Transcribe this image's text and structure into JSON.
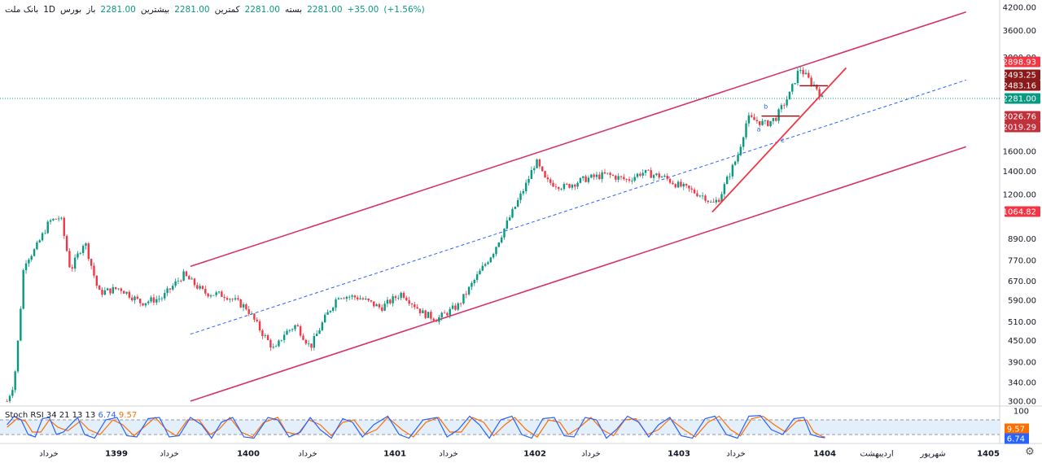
{
  "legend": {
    "symbol": "بانک ملت",
    "interval": "1D",
    "exchange": "بورس",
    "open_label": "باز",
    "open": "2281.00",
    "high_label": "بیشترین",
    "high": "2281.00",
    "low_label": "کمترین",
    "low": "2281.00",
    "close_label": "بسته",
    "close": "2281.00",
    "change": "+35.00",
    "change_pct": "(+1.56%)"
  },
  "stoch_legend": {
    "name": "Stoch RSI",
    "params": "34 21 13 13",
    "k": "6.74",
    "d": "9.57"
  },
  "colors": {
    "channel": "#d6336c",
    "midline": "#2962ff",
    "up": "#089981",
    "down": "#f23645",
    "stoch_k": "#2962ff",
    "stoch_d": "#ff6d00",
    "trendline": "#f23645",
    "stoch_band": "#e3f0fb"
  },
  "chart_data": {
    "type": "candlestick",
    "price_scale": "log",
    "y_ticks": [
      "4200.00",
      "3600.00",
      "3000.00",
      "1600.00",
      "1400.00",
      "1200.00",
      "890.00",
      "770.00",
      "670.00",
      "590.00",
      "510.00",
      "450.00",
      "390.00",
      "340.00",
      "300.00"
    ],
    "x_labels": [
      "خرداد",
      "1399",
      "خرداد",
      "1400",
      "خرداد",
      "1401",
      "خرداد",
      "1402",
      "خرداد",
      "1403",
      "خرداد",
      "1404",
      "اردیبهشت",
      "شهریور",
      "1405"
    ],
    "price_tags": [
      {
        "value": "2898.93",
        "color": "#f23645"
      },
      {
        "value": "2493.25",
        "color": "#8b1a1a"
      },
      {
        "value": "2483.16",
        "color": "#8b1a1a"
      },
      {
        "value": "2281.00",
        "color": "#089981"
      },
      {
        "value": "2026.76",
        "color": "#c0313b"
      },
      {
        "value": "2019.29",
        "color": "#c0313b"
      },
      {
        "value": "1064.82",
        "color": "#f23645"
      }
    ],
    "stoch_ticks": [
      "100",
      "9.57",
      "6.74"
    ],
    "wave_labels": [
      "a",
      "b",
      "c"
    ],
    "close_anchors": [
      [
        1398.0,
        300
      ],
      [
        1398.05,
        340
      ],
      [
        1398.08,
        460
      ],
      [
        1398.12,
        760
      ],
      [
        1398.2,
        830
      ],
      [
        1398.3,
        1000
      ],
      [
        1398.38,
        1030
      ],
      [
        1398.45,
        720
      ],
      [
        1398.55,
        880
      ],
      [
        1398.65,
        620
      ],
      [
        1398.8,
        640
      ],
      [
        1398.95,
        580
      ],
      [
        1399.1,
        600
      ],
      [
        1399.25,
        700
      ],
      [
        1399.4,
        620
      ],
      [
        1399.55,
        610
      ],
      [
        1399.7,
        560
      ],
      [
        1399.8,
        480
      ],
      [
        1399.9,
        420
      ],
      [
        1399.96,
        470
      ],
      [
        1400.05,
        500
      ],
      [
        1400.15,
        430
      ],
      [
        1400.25,
        520
      ],
      [
        1400.35,
        610
      ],
      [
        1400.5,
        600
      ],
      [
        1400.65,
        560
      ],
      [
        1400.8,
        620
      ],
      [
        1400.95,
        540
      ],
      [
        1401.05,
        520
      ],
      [
        1401.2,
        570
      ],
      [
        1401.32,
        680
      ],
      [
        1401.45,
        820
      ],
      [
        1401.55,
        1000
      ],
      [
        1401.68,
        1280
      ],
      [
        1401.75,
        1500
      ],
      [
        1401.82,
        1310
      ],
      [
        1401.95,
        1260
      ],
      [
        1402.1,
        1330
      ],
      [
        1402.25,
        1370
      ],
      [
        1402.4,
        1320
      ],
      [
        1402.5,
        1390
      ],
      [
        1402.65,
        1350
      ],
      [
        1402.75,
        1280
      ],
      [
        1402.85,
        1230
      ],
      [
        1402.95,
        1180
      ],
      [
        1403.0,
        1120
      ],
      [
        1403.05,
        1170
      ],
      [
        1403.1,
        1310
      ],
      [
        1403.18,
        1550
      ],
      [
        1403.25,
        2000
      ],
      [
        1403.32,
        1960
      ],
      [
        1403.38,
        1920
      ],
      [
        1403.45,
        2000
      ],
      [
        1403.55,
        2350
      ],
      [
        1403.62,
        2800
      ],
      [
        1403.68,
        2600
      ],
      [
        1403.74,
        2450
      ],
      [
        1403.78,
        2281
      ]
    ],
    "stoch_rsi": {
      "k": [
        [
          1398.0,
          60
        ],
        [
          1398.05,
          95
        ],
        [
          1398.1,
          80
        ],
        [
          1398.15,
          20
        ],
        [
          1398.2,
          10
        ],
        [
          1398.25,
          85
        ],
        [
          1398.3,
          90
        ],
        [
          1398.35,
          20
        ],
        [
          1398.4,
          30
        ],
        [
          1398.5,
          90
        ],
        [
          1398.55,
          20
        ],
        [
          1398.62,
          5
        ],
        [
          1398.7,
          80
        ],
        [
          1398.78,
          90
        ],
        [
          1398.85,
          15
        ],
        [
          1398.92,
          10
        ],
        [
          1399.0,
          85
        ],
        [
          1399.08,
          90
        ],
        [
          1399.15,
          10
        ],
        [
          1399.22,
          15
        ],
        [
          1399.3,
          90
        ],
        [
          1399.38,
          60
        ],
        [
          1399.45,
          5
        ],
        [
          1399.52,
          70
        ],
        [
          1399.6,
          90
        ],
        [
          1399.68,
          10
        ],
        [
          1399.75,
          5
        ],
        [
          1399.85,
          90
        ],
        [
          1399.92,
          80
        ],
        [
          1400.0,
          10
        ],
        [
          1400.08,
          30
        ],
        [
          1400.15,
          90
        ],
        [
          1400.22,
          40
        ],
        [
          1400.3,
          5
        ],
        [
          1400.38,
          85
        ],
        [
          1400.45,
          70
        ],
        [
          1400.52,
          10
        ],
        [
          1400.6,
          60
        ],
        [
          1400.7,
          95
        ],
        [
          1400.78,
          20
        ],
        [
          1400.85,
          5
        ],
        [
          1400.95,
          80
        ],
        [
          1401.05,
          90
        ],
        [
          1401.12,
          10
        ],
        [
          1401.2,
          40
        ],
        [
          1401.28,
          95
        ],
        [
          1401.35,
          60
        ],
        [
          1401.42,
          5
        ],
        [
          1401.5,
          80
        ],
        [
          1401.58,
          95
        ],
        [
          1401.65,
          20
        ],
        [
          1401.72,
          5
        ],
        [
          1401.8,
          85
        ],
        [
          1401.88,
          90
        ],
        [
          1401.95,
          15
        ],
        [
          1402.02,
          10
        ],
        [
          1402.1,
          90
        ],
        [
          1402.18,
          80
        ],
        [
          1402.25,
          5
        ],
        [
          1402.32,
          40
        ],
        [
          1402.4,
          95
        ],
        [
          1402.48,
          70
        ],
        [
          1402.55,
          10
        ],
        [
          1402.62,
          60
        ],
        [
          1402.7,
          90
        ],
        [
          1402.78,
          15
        ],
        [
          1402.86,
          5
        ],
        [
          1402.95,
          85
        ],
        [
          1403.02,
          95
        ],
        [
          1403.1,
          20
        ],
        [
          1403.18,
          5
        ],
        [
          1403.26,
          95
        ],
        [
          1403.34,
          98
        ],
        [
          1403.42,
          40
        ],
        [
          1403.5,
          20
        ],
        [
          1403.58,
          85
        ],
        [
          1403.65,
          90
        ],
        [
          1403.7,
          20
        ],
        [
          1403.76,
          10
        ],
        [
          1403.8,
          6.74
        ]
      ],
      "d": [
        [
          1398.0,
          50
        ],
        [
          1398.07,
          85
        ],
        [
          1398.13,
          75
        ],
        [
          1398.18,
          30
        ],
        [
          1398.24,
          30
        ],
        [
          1398.3,
          80
        ],
        [
          1398.36,
          50
        ],
        [
          1398.43,
          35
        ],
        [
          1398.52,
          75
        ],
        [
          1398.58,
          40
        ],
        [
          1398.66,
          20
        ],
        [
          1398.75,
          80
        ],
        [
          1398.82,
          60
        ],
        [
          1398.9,
          15
        ],
        [
          1398.97,
          50
        ],
        [
          1399.05,
          90
        ],
        [
          1399.13,
          40
        ],
        [
          1399.2,
          15
        ],
        [
          1399.28,
          80
        ],
        [
          1399.36,
          80
        ],
        [
          1399.44,
          20
        ],
        [
          1399.5,
          40
        ],
        [
          1399.58,
          90
        ],
        [
          1399.66,
          30
        ],
        [
          1399.74,
          10
        ],
        [
          1399.82,
          70
        ],
        [
          1399.92,
          90
        ],
        [
          1399.98,
          30
        ],
        [
          1400.06,
          20
        ],
        [
          1400.14,
          80
        ],
        [
          1400.22,
          60
        ],
        [
          1400.3,
          15
        ],
        [
          1400.38,
          70
        ],
        [
          1400.46,
          80
        ],
        [
          1400.54,
          20
        ],
        [
          1400.62,
          40
        ],
        [
          1400.7,
          90
        ],
        [
          1400.8,
          40
        ],
        [
          1400.88,
          10
        ],
        [
          1400.97,
          70
        ],
        [
          1401.06,
          90
        ],
        [
          1401.14,
          30
        ],
        [
          1401.22,
          30
        ],
        [
          1401.3,
          90
        ],
        [
          1401.38,
          70
        ],
        [
          1401.45,
          15
        ],
        [
          1401.53,
          60
        ],
        [
          1401.6,
          90
        ],
        [
          1401.68,
          40
        ],
        [
          1401.76,
          10
        ],
        [
          1401.84,
          80
        ],
        [
          1401.92,
          70
        ],
        [
          1401.98,
          20
        ],
        [
          1402.06,
          50
        ],
        [
          1402.14,
          90
        ],
        [
          1402.22,
          40
        ],
        [
          1402.3,
          15
        ],
        [
          1402.38,
          80
        ],
        [
          1402.46,
          85
        ],
        [
          1402.54,
          20
        ],
        [
          1402.62,
          40
        ],
        [
          1402.7,
          85
        ],
        [
          1402.8,
          40
        ],
        [
          1402.88,
          10
        ],
        [
          1402.97,
          70
        ],
        [
          1403.05,
          95
        ],
        [
          1403.13,
          40
        ],
        [
          1403.2,
          15
        ],
        [
          1403.28,
          85
        ],
        [
          1403.36,
          95
        ],
        [
          1403.44,
          60
        ],
        [
          1403.52,
          30
        ],
        [
          1403.6,
          75
        ],
        [
          1403.67,
          80
        ],
        [
          1403.72,
          30
        ],
        [
          1403.78,
          12
        ],
        [
          1403.8,
          9.57
        ]
      ]
    },
    "channel": {
      "upper": [
        [
          1399.3,
          740
        ],
        [
          1404.8,
          4070
        ]
      ],
      "lower": [
        [
          1399.3,
          300
        ],
        [
          1404.8,
          1650
        ]
      ],
      "mid": [
        [
          1399.3,
          470
        ],
        [
          1404.8,
          2580
        ]
      ]
    },
    "trendline": [
      [
        1403.0,
        1064.82
      ],
      [
        1403.95,
        2800
      ]
    ],
    "hlines": [
      {
        "x": [
          1403.35,
          1403.62
        ],
        "y": 2026.76
      },
      {
        "x": [
          1403.62,
          1403.82
        ],
        "y": 2483.16
      }
    ],
    "last_price_line": 2281.0
  }
}
